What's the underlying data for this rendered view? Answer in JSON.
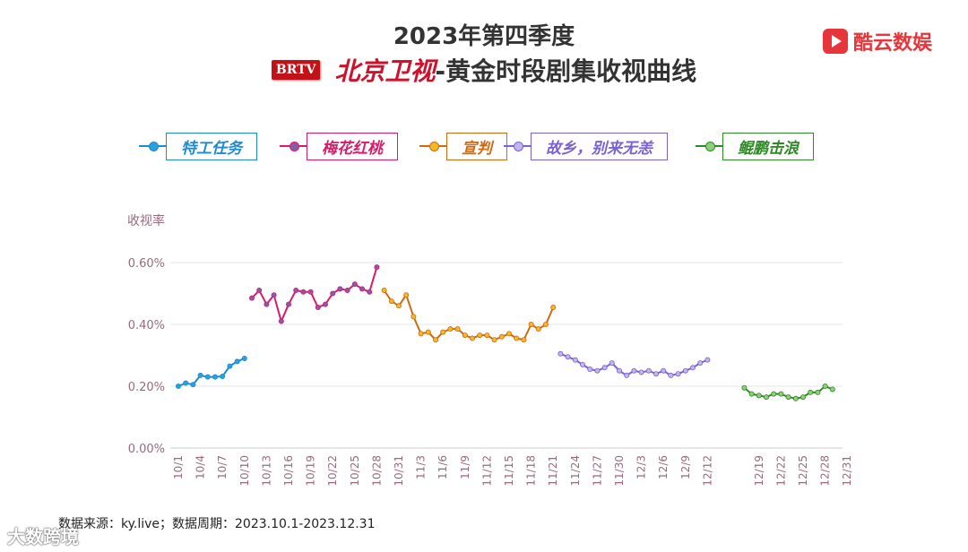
{
  "title_line1": "2023年第四季度",
  "brtv_logo": "BRTV",
  "title_channel": "北京卫视",
  "title_suffix": "-黄金时段剧集收视曲线",
  "brand_logo_text": "酷云数娱",
  "source_text": "数据来源：ky.live；数据周期：2023.10.1-2023.12.31",
  "watermark_text": "大数跨境",
  "legend": [
    {
      "label": "特工任务",
      "color": "#1d8bcf"
    },
    {
      "label": "梅花红桃",
      "color": "#d81b6b"
    },
    {
      "label": "宣判",
      "color": "#cf6a12"
    },
    {
      "label": "故乡，别来无恙",
      "color": "#7b61d6"
    },
    {
      "label": "鲲鹏击浪",
      "color": "#2e8a24"
    }
  ],
  "chart_data": {
    "type": "line",
    "ylabel": "收视率",
    "ylim": [
      0,
      0.6
    ],
    "yticks": [
      "0.00%",
      "0.20%",
      "0.40%",
      "0.60%"
    ],
    "ytick_values": [
      0,
      0.2,
      0.4,
      0.6
    ],
    "grid": true,
    "legend_position": "top",
    "x_tick_labels": [
      "10/1",
      "10/4",
      "10/7",
      "10/10",
      "10/13",
      "10/16",
      "10/19",
      "10/22",
      "10/25",
      "10/28",
      "10/31",
      "11/3",
      "11/6",
      "11/9",
      "11/12",
      "11/15",
      "11/18",
      "11/21",
      "11/24",
      "11/27",
      "11/30",
      "12/3",
      "12/6",
      "12/9",
      "12/12",
      "12/19",
      "12/22",
      "12/25",
      "12/28",
      "12/31"
    ],
    "series": [
      {
        "name": "特工任务",
        "color": "#1d8bcf",
        "marker_color": "#2aa0e0",
        "start": "10/1",
        "values": [
          0.2,
          0.21,
          0.205,
          0.235,
          0.23,
          0.23,
          0.232,
          0.265,
          0.28,
          0.29
        ]
      },
      {
        "name": "梅花红桃",
        "color": "#d81b6b",
        "marker_color": "#8a5aa6",
        "start": "10/11",
        "values": [
          0.485,
          0.51,
          0.465,
          0.495,
          0.41,
          0.465,
          0.51,
          0.505,
          0.505,
          0.455,
          0.465,
          0.5,
          0.515,
          0.51,
          0.53,
          0.515,
          0.505,
          0.585
        ]
      },
      {
        "name": "宣判",
        "color": "#cf6a12",
        "marker_color": "#f5b826",
        "start": "10/29",
        "values": [
          0.51,
          0.475,
          0.46,
          0.495,
          0.425,
          0.37,
          0.375,
          0.35,
          0.375,
          0.385,
          0.385,
          0.365,
          0.355,
          0.365,
          0.365,
          0.35,
          0.36,
          0.37,
          0.355,
          0.35,
          0.4,
          0.385,
          0.4,
          0.455
        ]
      },
      {
        "name": "故乡，别来无恙",
        "color": "#7b61d6",
        "marker_color": "#c3b4f0",
        "start": "11/22",
        "values": [
          0.305,
          0.295,
          0.285,
          0.27,
          0.255,
          0.25,
          0.26,
          0.275,
          0.25,
          0.235,
          0.25,
          0.245,
          0.25,
          0.24,
          0.25,
          0.235,
          0.24,
          0.25,
          0.26,
          0.275,
          0.285
        ]
      },
      {
        "name": "鲲鹏击浪",
        "color": "#2e8a24",
        "marker_color": "#8fcf79",
        "start": "12/17",
        "values": [
          0.195,
          0.175,
          0.17,
          0.165,
          0.175,
          0.175,
          0.165,
          0.16,
          0.165,
          0.18,
          0.18,
          0.2,
          0.19
        ]
      }
    ]
  }
}
